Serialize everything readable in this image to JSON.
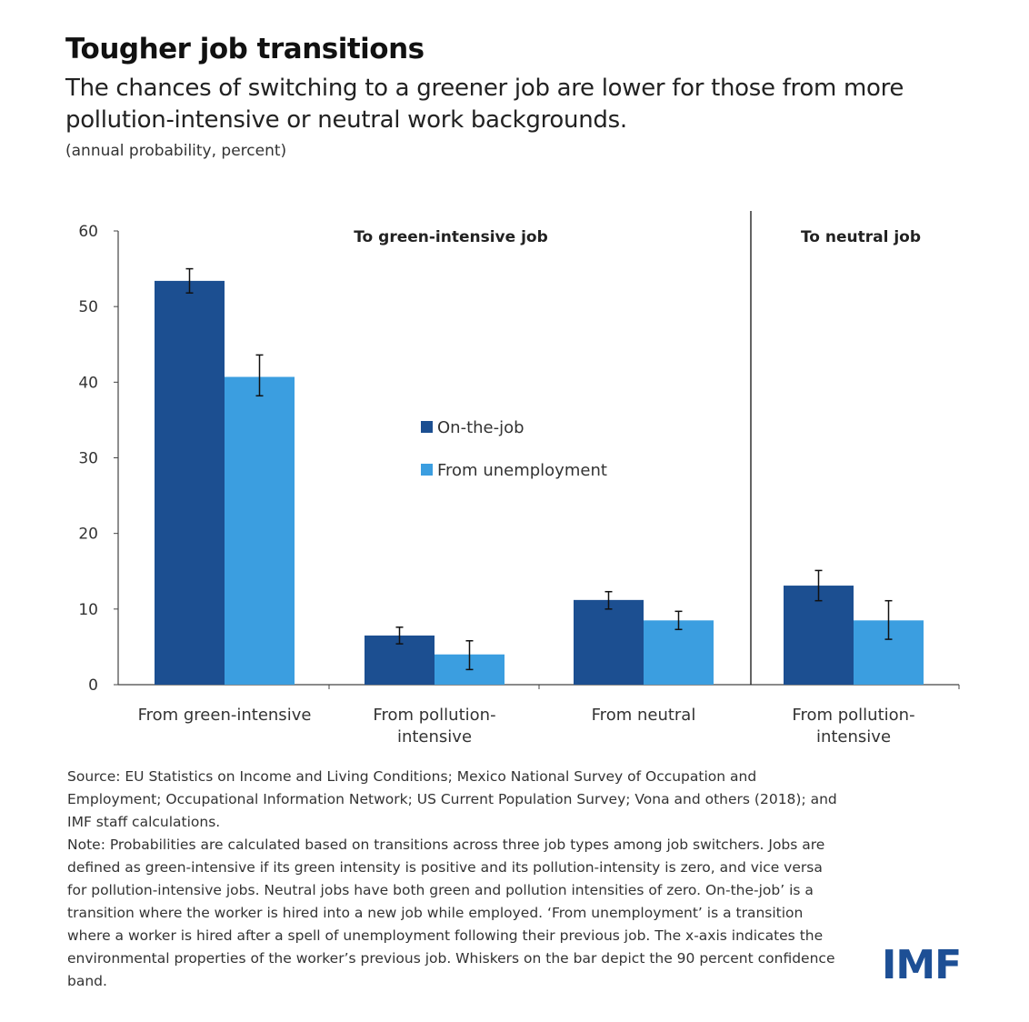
{
  "header": {
    "title": "Tougher job transitions",
    "subtitle": "The chances of switching to a greener job are lower for those from more pollution-intensive or neutral work backgrounds.",
    "unit": "(annual probability, percent)"
  },
  "chart_data": {
    "type": "bar",
    "ylim": [
      0,
      60
    ],
    "yticks": [
      0,
      10,
      20,
      30,
      40,
      50,
      60
    ],
    "panels": [
      {
        "title": "To green-intensive job",
        "categories": [
          "From green-intensive",
          "From pollution-intensive",
          "From neutral"
        ]
      },
      {
        "title": "To neutral job",
        "categories": [
          "From pollution-intensive"
        ]
      }
    ],
    "categories": [
      "From green-intensive",
      "From pollution-intensive",
      "From neutral",
      "From pollution-intensive"
    ],
    "series": [
      {
        "name": "On-the-job",
        "color": "#1c4f91",
        "values": [
          53.4,
          6.5,
          11.2,
          13.1
        ],
        "ci_low": [
          51.8,
          5.4,
          10.0,
          11.1
        ],
        "ci_high": [
          55.0,
          7.6,
          12.3,
          15.1
        ]
      },
      {
        "name": "From unemployment",
        "color": "#3b9ee0",
        "values": [
          40.7,
          4.0,
          8.5,
          8.5
        ],
        "ci_low": [
          38.2,
          2.0,
          7.3,
          6.0
        ],
        "ci_high": [
          43.6,
          5.8,
          9.7,
          11.1
        ]
      }
    ],
    "legend_position": "center",
    "grid": false
  },
  "footer": {
    "source": "Source: EU Statistics on Income and Living Conditions; Mexico National Survey of Occupation and Employment; Occupational Information Network; US Current Population Survey; Vona and others (2018); and IMF staff calculations.",
    "note": "Note: Probabilities are calculated based on transitions across three job types among job switchers. Jobs are defined as green-intensive if its green intensity is positive and its pollution-intensity is zero, and vice versa for pollution-intensive jobs. Neutral jobs have both green and pollution intensities of zero. On-the-job’ is a transition where the worker is hired into a new job while employed. ‘From unemployment’ is a transition where a worker is hired after a spell of unemployment following their previous job. The x-axis indicates the environmental properties of the worker’s previous job. Whiskers on the bar depict the 90 percent confidence band.",
    "logo": "IMF"
  }
}
